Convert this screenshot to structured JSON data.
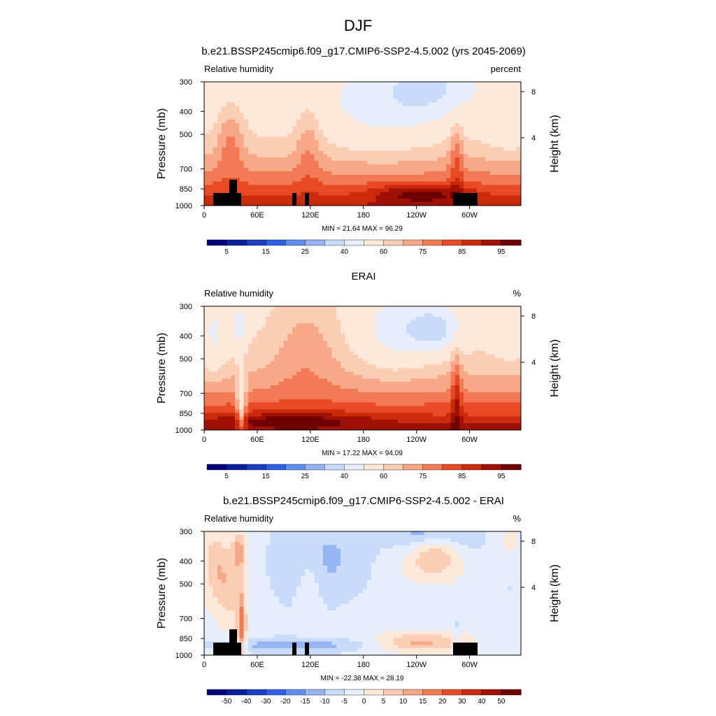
{
  "figure_title": "DJF",
  "chart_data": [
    {
      "type": "heatmap",
      "title": "b.e21.BSSP245cmip6.f09_g17.CMIP6-SSP2-4.5.002 (yrs 2045-2069)",
      "left_label": "Relative humidity",
      "right_label": "percent",
      "ylabel": "Pressure (mb)",
      "y2label": "Height (km)",
      "x_ticks": [
        "0",
        "60E",
        "120E",
        "180",
        "120W",
        "60W"
      ],
      "y_ticks": [
        "300",
        "400",
        "500",
        "700",
        "850",
        "1000"
      ],
      "y2_ticks": [
        "8",
        "4"
      ],
      "stats": "MIN =  21.64  MAX =  96.29",
      "colorbar_labels": [
        "5",
        "15",
        "25",
        "40",
        "60",
        "75",
        "85",
        "95"
      ],
      "min": 21.64,
      "max": 96.29
    },
    {
      "type": "heatmap",
      "title": "ERAI",
      "left_label": "Relative humidity",
      "right_label": "%",
      "ylabel": "Pressure (mb)",
      "y2label": "Height (km)",
      "x_ticks": [
        "0",
        "60E",
        "120E",
        "180",
        "120W",
        "60W"
      ],
      "y_ticks": [
        "300",
        "400",
        "500",
        "700",
        "850",
        "1000"
      ],
      "y2_ticks": [
        "8",
        "4"
      ],
      "stats": "MIN =  17.22  MAX =  94.09",
      "colorbar_labels": [
        "5",
        "15",
        "25",
        "40",
        "60",
        "75",
        "85",
        "95"
      ],
      "min": 17.22,
      "max": 94.09
    },
    {
      "type": "heatmap",
      "title": "b.e21.BSSP245cmip6.f09_g17.CMIP6-SSP2-4.5.002 - ERAI",
      "left_label": "Relative humidity",
      "right_label": "%",
      "ylabel": "Pressure (mb)",
      "y2label": "Height (km)",
      "x_ticks": [
        "0",
        "60E",
        "120E",
        "180",
        "120W",
        "60W"
      ],
      "y_ticks": [
        "300",
        "400",
        "500",
        "700",
        "850",
        "1000"
      ],
      "y2_ticks": [
        "8",
        "4"
      ],
      "stats": "MIN = -22.38  MAX =  28.19",
      "colorbar_labels": [
        "-50",
        "-40",
        "-30",
        "-20",
        "-15",
        "-10",
        "-5",
        "0",
        "5",
        "10",
        "15",
        "20",
        "30",
        "40",
        "50"
      ],
      "min": -22.38,
      "max": 28.19
    }
  ],
  "palette": [
    "#00007f",
    "#0a1f9c",
    "#1a3fc2",
    "#2f5fe6",
    "#5f8ef0",
    "#94b4f4",
    "#c8dbfa",
    "#e6eefc",
    "#fde7d8",
    "#fbcdb4",
    "#f7a886",
    "#f27a55",
    "#e84a26",
    "#cc2a0c",
    "#a01004",
    "#700000"
  ]
}
